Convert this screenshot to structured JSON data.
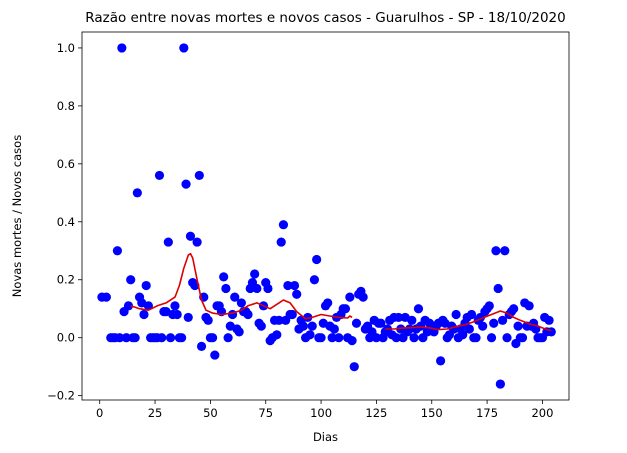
{
  "chart_data": {
    "type": "scatter",
    "title": "Razão entre novas mortes e novos casos - Guarulhos - SP - 18/10/2020",
    "xlabel": "Dias",
    "ylabel": "Novas mortes / Novos casos",
    "xlim": [
      -8,
      212
    ],
    "ylim": [
      -0.215,
      1.055
    ],
    "x_ticks": [
      0,
      25,
      50,
      75,
      100,
      125,
      150,
      175,
      200
    ],
    "x_tick_labels": [
      "0",
      "25",
      "50",
      "75",
      "100",
      "125",
      "150",
      "175",
      "200"
    ],
    "y_ticks": [
      -0.2,
      0.0,
      0.2,
      0.4,
      0.6,
      0.8,
      1.0
    ],
    "y_tick_labels": [
      "−0.2",
      "0.0",
      "0.2",
      "0.4",
      "0.6",
      "0.8",
      "1.0"
    ],
    "grid": false,
    "legend": false,
    "series": [
      {
        "kind": "scatter",
        "color": "#0000ff",
        "points": [
          [
            1,
            0.14
          ],
          [
            3,
            0.14
          ],
          [
            5,
            0.0
          ],
          [
            6,
            0.0
          ],
          [
            7,
            0.0
          ],
          [
            8,
            0.3
          ],
          [
            9,
            0.0
          ],
          [
            10,
            1.0
          ],
          [
            11,
            0.09
          ],
          [
            12,
            0.0
          ],
          [
            13,
            0.11
          ],
          [
            14,
            0.2
          ],
          [
            15,
            0.0
          ],
          [
            16,
            0.0
          ],
          [
            17,
            0.5
          ],
          [
            18,
            0.14
          ],
          [
            19,
            0.12
          ],
          [
            20,
            0.08
          ],
          [
            21,
            0.18
          ],
          [
            22,
            0.11
          ],
          [
            23,
            0.0
          ],
          [
            24,
            0.0
          ],
          [
            25,
            0.0
          ],
          [
            26,
            0.0
          ],
          [
            27,
            0.56
          ],
          [
            28,
            0.0
          ],
          [
            29,
            0.09
          ],
          [
            30,
            0.09
          ],
          [
            31,
            0.33
          ],
          [
            32,
            0.0
          ],
          [
            33,
            0.08
          ],
          [
            34,
            0.11
          ],
          [
            35,
            0.08
          ],
          [
            36,
            0.0
          ],
          [
            37,
            0.0
          ],
          [
            38,
            1.0
          ],
          [
            39,
            0.53
          ],
          [
            40,
            0.07
          ],
          [
            41,
            0.35
          ],
          [
            42,
            0.19
          ],
          [
            43,
            0.18
          ],
          [
            44,
            0.33
          ],
          [
            45,
            0.56
          ],
          [
            46,
            -0.03
          ],
          [
            47,
            0.14
          ],
          [
            48,
            0.07
          ],
          [
            49,
            0.06
          ],
          [
            50,
            0.0
          ],
          [
            51,
            0.0
          ],
          [
            52,
            -0.06
          ],
          [
            53,
            0.11
          ],
          [
            54,
            0.11
          ],
          [
            55,
            0.09
          ],
          [
            56,
            0.21
          ],
          [
            57,
            0.17
          ],
          [
            58,
            0.0
          ],
          [
            59,
            0.04
          ],
          [
            60,
            0.08
          ],
          [
            61,
            0.14
          ],
          [
            62,
            0.03
          ],
          [
            63,
            0.02
          ],
          [
            64,
            0.12
          ],
          [
            65,
            0.09
          ],
          [
            66,
            0.09
          ],
          [
            67,
            0.08
          ],
          [
            68,
            0.17
          ],
          [
            69,
            0.19
          ],
          [
            70,
            0.22
          ],
          [
            71,
            0.17
          ],
          [
            72,
            0.05
          ],
          [
            73,
            0.04
          ],
          [
            74,
            0.11
          ],
          [
            75,
            0.19
          ],
          [
            76,
            0.17
          ],
          [
            77,
            -0.01
          ],
          [
            78,
            0.0
          ],
          [
            79,
            0.06
          ],
          [
            80,
            0.01
          ],
          [
            81,
            0.06
          ],
          [
            82,
            0.33
          ],
          [
            83,
            0.39
          ],
          [
            84,
            0.06
          ],
          [
            85,
            0.18
          ],
          [
            86,
            0.08
          ],
          [
            87,
            0.08
          ],
          [
            88,
            0.18
          ],
          [
            89,
            0.15
          ],
          [
            90,
            0.03
          ],
          [
            91,
            0.06
          ],
          [
            92,
            0.04
          ],
          [
            93,
            0.0
          ],
          [
            94,
            0.07
          ],
          [
            95,
            0.01
          ],
          [
            96,
            0.04
          ],
          [
            97,
            0.2
          ],
          [
            98,
            0.27
          ],
          [
            99,
            0.0
          ],
          [
            100,
            0.0
          ],
          [
            101,
            0.05
          ],
          [
            102,
            0.11
          ],
          [
            103,
            0.12
          ],
          [
            104,
            0.04
          ],
          [
            105,
            0.0
          ],
          [
            106,
            0.03
          ],
          [
            107,
            0.07
          ],
          [
            108,
            0.0
          ],
          [
            109,
            0.08
          ],
          [
            110,
            0.1
          ],
          [
            111,
            0.1
          ],
          [
            112,
            0.0
          ],
          [
            113,
            0.14
          ],
          [
            114,
            -0.01
          ],
          [
            115,
            -0.1
          ],
          [
            116,
            0.05
          ],
          [
            117,
            0.15
          ],
          [
            118,
            0.16
          ],
          [
            119,
            0.14
          ],
          [
            120,
            0.03
          ],
          [
            121,
            0.04
          ],
          [
            122,
            0.0
          ],
          [
            123,
            0.02
          ],
          [
            124,
            0.06
          ],
          [
            125,
            0.0
          ],
          [
            126,
            0.05
          ],
          [
            127,
            0.05
          ],
          [
            128,
            0.0
          ],
          [
            129,
            0.02
          ],
          [
            130,
            0.03
          ],
          [
            131,
            0.06
          ],
          [
            132,
            0.01
          ],
          [
            133,
            0.07
          ],
          [
            134,
            0.0
          ],
          [
            135,
            0.07
          ],
          [
            136,
            0.03
          ],
          [
            137,
            0.0
          ],
          [
            138,
            0.07
          ],
          [
            139,
            0.02
          ],
          [
            140,
            0.03
          ],
          [
            141,
            0.06
          ],
          [
            142,
            0.0
          ],
          [
            143,
            0.03
          ],
          [
            144,
            0.1
          ],
          [
            145,
            0.04
          ],
          [
            146,
            0.0
          ],
          [
            147,
            0.06
          ],
          [
            148,
            0.02
          ],
          [
            149,
            0.05
          ],
          [
            150,
            0.03
          ],
          [
            151,
            0.02
          ],
          [
            152,
            0.04
          ],
          [
            153,
            0.05
          ],
          [
            154,
            -0.08
          ],
          [
            155,
            0.06
          ],
          [
            156,
            0.05
          ],
          [
            157,
            0.0
          ],
          [
            158,
            0.01
          ],
          [
            159,
            0.04
          ],
          [
            160,
            0.03
          ],
          [
            161,
            0.08
          ],
          [
            162,
            0.0
          ],
          [
            163,
            0.03
          ],
          [
            164,
            0.01
          ],
          [
            165,
            0.05
          ],
          [
            166,
            0.07
          ],
          [
            167,
            0.03
          ],
          [
            168,
            0.08
          ],
          [
            169,
            0.0
          ],
          [
            170,
            0.0
          ],
          [
            171,
            0.06
          ],
          [
            172,
            0.07
          ],
          [
            173,
            0.04
          ],
          [
            174,
            0.09
          ],
          [
            175,
            0.1
          ],
          [
            176,
            0.11
          ],
          [
            177,
            0.0
          ],
          [
            178,
            0.05
          ],
          [
            179,
            0.3
          ],
          [
            180,
            0.17
          ],
          [
            181,
            -0.16
          ],
          [
            182,
            0.06
          ],
          [
            183,
            0.3
          ],
          [
            184,
            0.0
          ],
          [
            185,
            0.08
          ],
          [
            186,
            0.09
          ],
          [
            187,
            0.1
          ],
          [
            188,
            -0.02
          ],
          [
            189,
            0.04
          ],
          [
            190,
            0.0
          ],
          [
            191,
            0.0
          ],
          [
            192,
            0.12
          ],
          [
            193,
            0.04
          ],
          [
            194,
            0.11
          ],
          [
            195,
            0.04
          ],
          [
            196,
            0.05
          ],
          [
            197,
            0.03
          ],
          [
            198,
            0.0
          ],
          [
            199,
            0.0
          ],
          [
            200,
            0.0
          ],
          [
            201,
            0.07
          ],
          [
            202,
            0.02
          ],
          [
            203,
            0.06
          ],
          [
            204,
            0.02
          ]
        ]
      },
      {
        "kind": "line",
        "color": "#dd0000",
        "points": [
          [
            14,
            0.11
          ],
          [
            18,
            0.1
          ],
          [
            22,
            0.095
          ],
          [
            26,
            0.11
          ],
          [
            30,
            0.12
          ],
          [
            34,
            0.14
          ],
          [
            36,
            0.18
          ],
          [
            38,
            0.24
          ],
          [
            40,
            0.285
          ],
          [
            41,
            0.29
          ],
          [
            42,
            0.275
          ],
          [
            44,
            0.2
          ],
          [
            46,
            0.13
          ],
          [
            48,
            0.095
          ],
          [
            51,
            0.085
          ],
          [
            55,
            0.08
          ],
          [
            60,
            0.085
          ],
          [
            64,
            0.095
          ],
          [
            67,
            0.11
          ],
          [
            71,
            0.12
          ],
          [
            74,
            0.11
          ],
          [
            77,
            0.1
          ],
          [
            81,
            0.12
          ],
          [
            83,
            0.13
          ],
          [
            86,
            0.12
          ],
          [
            89,
            0.09
          ],
          [
            93,
            0.065
          ],
          [
            96,
            0.07
          ],
          [
            100,
            0.08
          ],
          [
            104,
            0.075
          ],
          [
            108,
            0.07
          ],
          [
            112,
            0.068
          ],
          [
            113,
            0.075
          ],
          [
            114,
            0.07
          ],
          [
            129,
            0.03
          ],
          [
            133,
            0.03
          ],
          [
            137,
            0.033
          ],
          [
            141,
            0.035
          ],
          [
            145,
            0.037
          ],
          [
            149,
            0.034
          ],
          [
            153,
            0.028
          ],
          [
            157,
            0.03
          ],
          [
            161,
            0.038
          ],
          [
            165,
            0.045
          ],
          [
            169,
            0.055
          ],
          [
            173,
            0.068
          ],
          [
            177,
            0.08
          ],
          [
            181,
            0.092
          ],
          [
            184,
            0.085
          ],
          [
            187,
            0.07
          ],
          [
            190,
            0.06
          ],
          [
            194,
            0.048
          ],
          [
            198,
            0.04
          ],
          [
            202,
            0.028
          ],
          [
            204,
            0.025
          ]
        ]
      }
    ]
  }
}
